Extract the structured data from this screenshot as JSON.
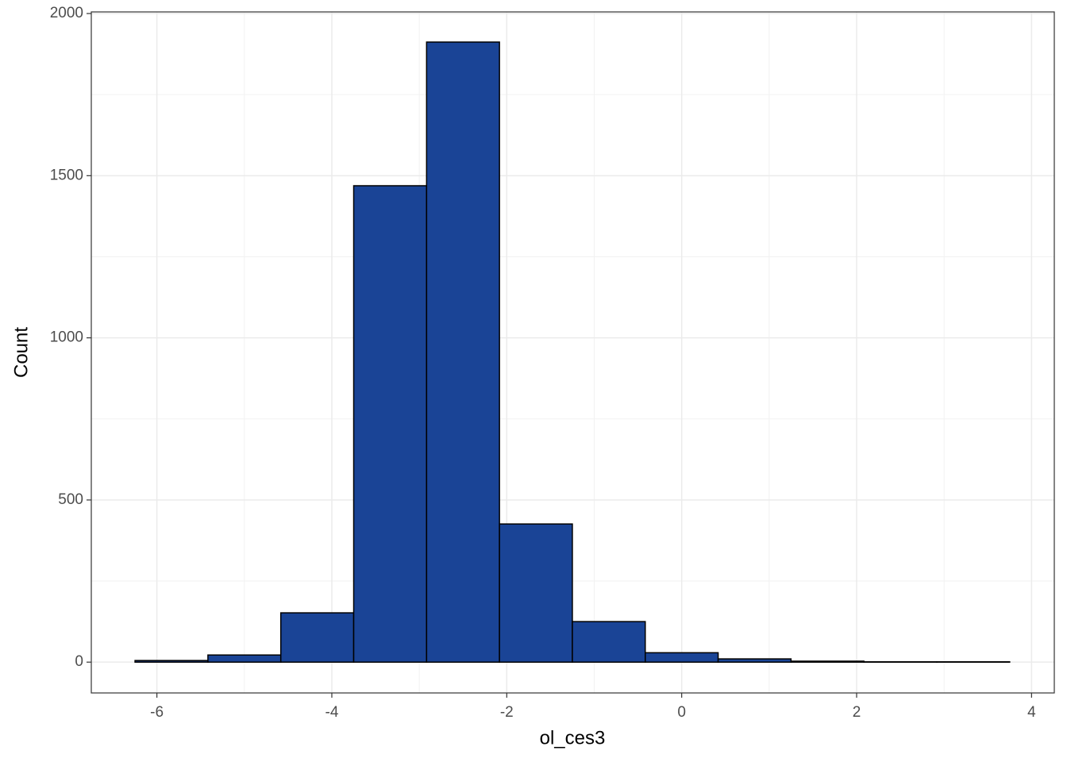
{
  "chart_data": {
    "type": "histogram",
    "x_label": "ol_ces3",
    "y_label": "Count",
    "bins": [
      -6.25,
      -5.4167,
      -4.5833,
      -3.75,
      -2.9167,
      -2.0833,
      -1.25,
      -0.4167,
      0.4167,
      1.25,
      2.0833,
      2.9167,
      3.75
    ],
    "counts": [
      5,
      22,
      152,
      1469,
      1912,
      426,
      125,
      29,
      10,
      3,
      1,
      1
    ],
    "color": "#1a4496",
    "edgecolor": "#000000",
    "xlim": [
      -6.75,
      4.26
    ],
    "ylim": [
      -95,
      2005
    ],
    "xticks": [
      -6,
      -4,
      -2,
      0,
      2,
      4
    ],
    "yticks": [
      0,
      500,
      1000,
      1500,
      2000
    ],
    "xminor": [
      -5,
      -3,
      -1,
      1,
      3
    ],
    "yminor": [
      250,
      750,
      1250,
      1750
    ],
    "grid": true
  }
}
